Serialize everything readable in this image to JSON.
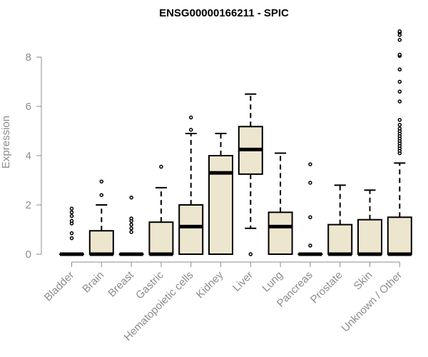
{
  "chart_data": {
    "type": "boxplot",
    "title": "ENSG00000166211 - SPIC",
    "ylabel": "Expression",
    "xlabel": "",
    "ylim": [
      0,
      9.2
    ],
    "yticks": [
      0,
      2,
      4,
      6,
      8
    ],
    "box_fill": "#ede6cf",
    "categories": [
      "Bladder",
      "Brain",
      "Breast",
      "Gastric",
      "Hematopoietic cells",
      "Kidney",
      "Liver",
      "Lung",
      "Pancreas",
      "Prostate",
      "Skin",
      "Unknown / Other"
    ],
    "boxes": [
      {
        "min": 0,
        "q1": 0,
        "median": 0,
        "q3": 0,
        "max": 0,
        "outliers": [
          0.65,
          0.85,
          1.25,
          1.35,
          1.55,
          1.7,
          1.85
        ]
      },
      {
        "min": 0,
        "q1": 0,
        "median": 0,
        "q3": 0.95,
        "max": 2.0,
        "outliers": [
          2.4,
          2.95
        ]
      },
      {
        "min": 0,
        "q1": 0,
        "median": 0,
        "q3": 0,
        "max": 0,
        "outliers": [
          0.9,
          1.05,
          1.2,
          1.35,
          1.45,
          2.3
        ]
      },
      {
        "min": 0,
        "q1": 0,
        "median": 0,
        "q3": 1.3,
        "max": 2.7,
        "outliers": [
          3.55
        ]
      },
      {
        "min": 0,
        "q1": 0,
        "median": 1.12,
        "q3": 2.0,
        "max": 4.9,
        "outliers": [
          5.05,
          5.55
        ]
      },
      {
        "min": 0,
        "q1": 0,
        "median": 3.3,
        "q3": 4.0,
        "max": 4.9,
        "outliers": []
      },
      {
        "min": 1.05,
        "q1": 3.25,
        "median": 4.25,
        "q3": 5.18,
        "max": 6.5,
        "outliers": [
          0.0
        ]
      },
      {
        "min": 0,
        "q1": 0,
        "median": 1.12,
        "q3": 1.7,
        "max": 4.1,
        "outliers": []
      },
      {
        "min": 0,
        "q1": 0,
        "median": 0,
        "q3": 0,
        "max": 0,
        "outliers": [
          0.35,
          1.5,
          2.9,
          3.65
        ]
      },
      {
        "min": 0,
        "q1": 0,
        "median": 0,
        "q3": 1.2,
        "max": 2.8,
        "outliers": []
      },
      {
        "min": 0,
        "q1": 0,
        "median": 0,
        "q3": 1.4,
        "max": 2.6,
        "outliers": []
      },
      {
        "min": 0,
        "q1": 0,
        "median": 0,
        "q3": 1.5,
        "max": 3.7,
        "outliers": [
          4.1,
          4.2,
          4.3,
          4.4,
          4.5,
          4.6,
          4.7,
          4.8,
          4.9,
          5.0,
          5.1,
          5.25,
          5.45,
          6.2,
          6.6,
          7.0,
          7.5,
          8.05,
          8.1,
          8.7,
          8.9,
          9.0,
          9.05
        ]
      }
    ]
  }
}
